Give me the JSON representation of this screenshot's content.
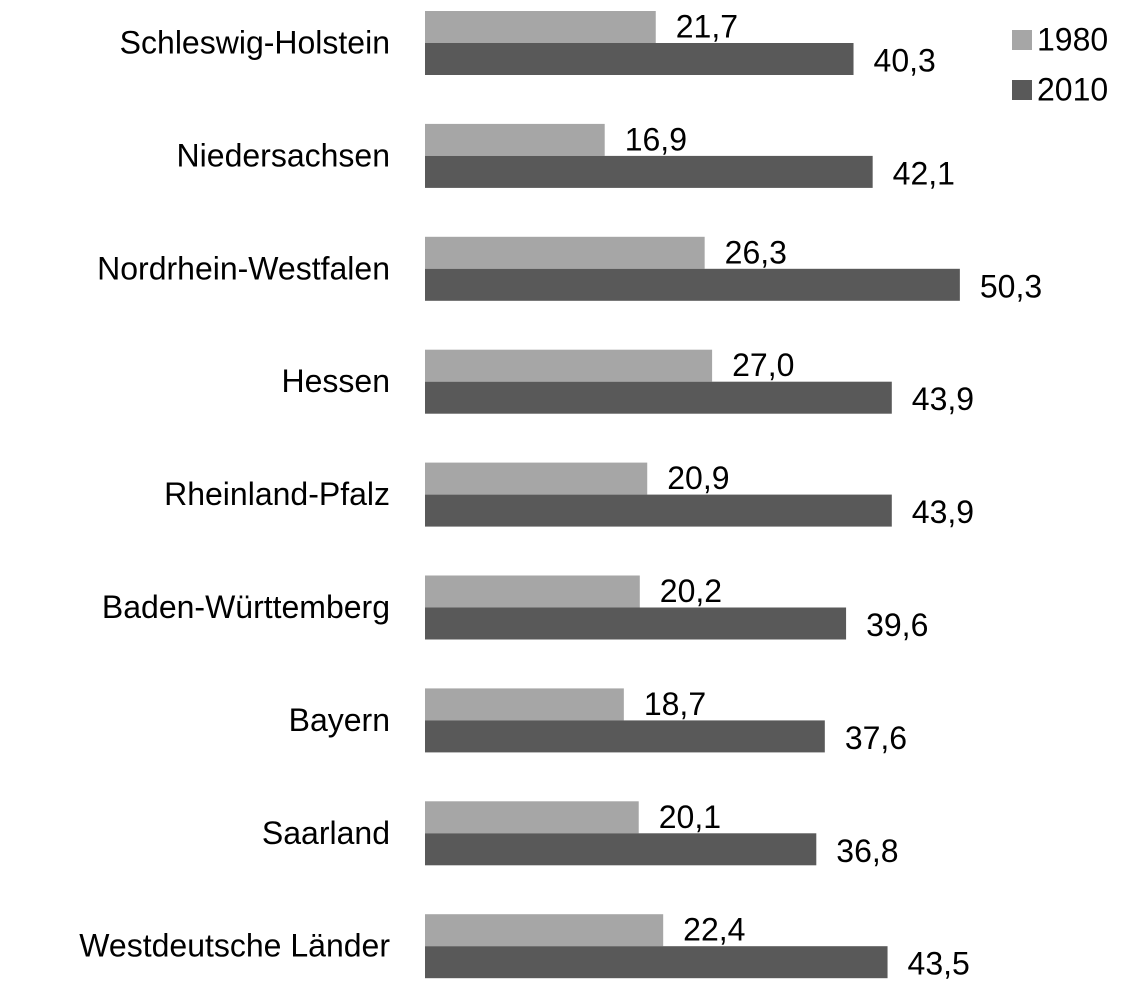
{
  "chart_data": {
    "type": "bar",
    "orientation": "horizontal",
    "categories": [
      "Schleswig-Holstein",
      "Niedersachsen",
      "Nordrhein-Westfalen",
      "Hessen",
      "Rheinland-Pfalz",
      "Baden-Württemberg",
      "Bayern",
      "Saarland",
      "Westdeutsche Länder"
    ],
    "series": [
      {
        "name": "1980",
        "color": "#a6a6a6",
        "values": [
          21.7,
          16.9,
          26.3,
          27.0,
          20.9,
          20.2,
          18.7,
          20.1,
          22.4
        ],
        "value_labels": [
          "21,7",
          "16,9",
          "26,3",
          "27,0",
          "20,9",
          "20,2",
          "18,7",
          "20,1",
          "22,4"
        ]
      },
      {
        "name": "2010",
        "color": "#595959",
        "values": [
          40.3,
          42.1,
          50.3,
          43.9,
          43.9,
          39.6,
          37.6,
          36.8,
          43.5
        ],
        "value_labels": [
          "40,3",
          "42,1",
          "50,3",
          "43,9",
          "43,9",
          "39,6",
          "37,6",
          "36,8",
          "43,5"
        ]
      }
    ],
    "xlim": [
      0,
      60
    ],
    "grid": false,
    "legend": "upper right"
  }
}
